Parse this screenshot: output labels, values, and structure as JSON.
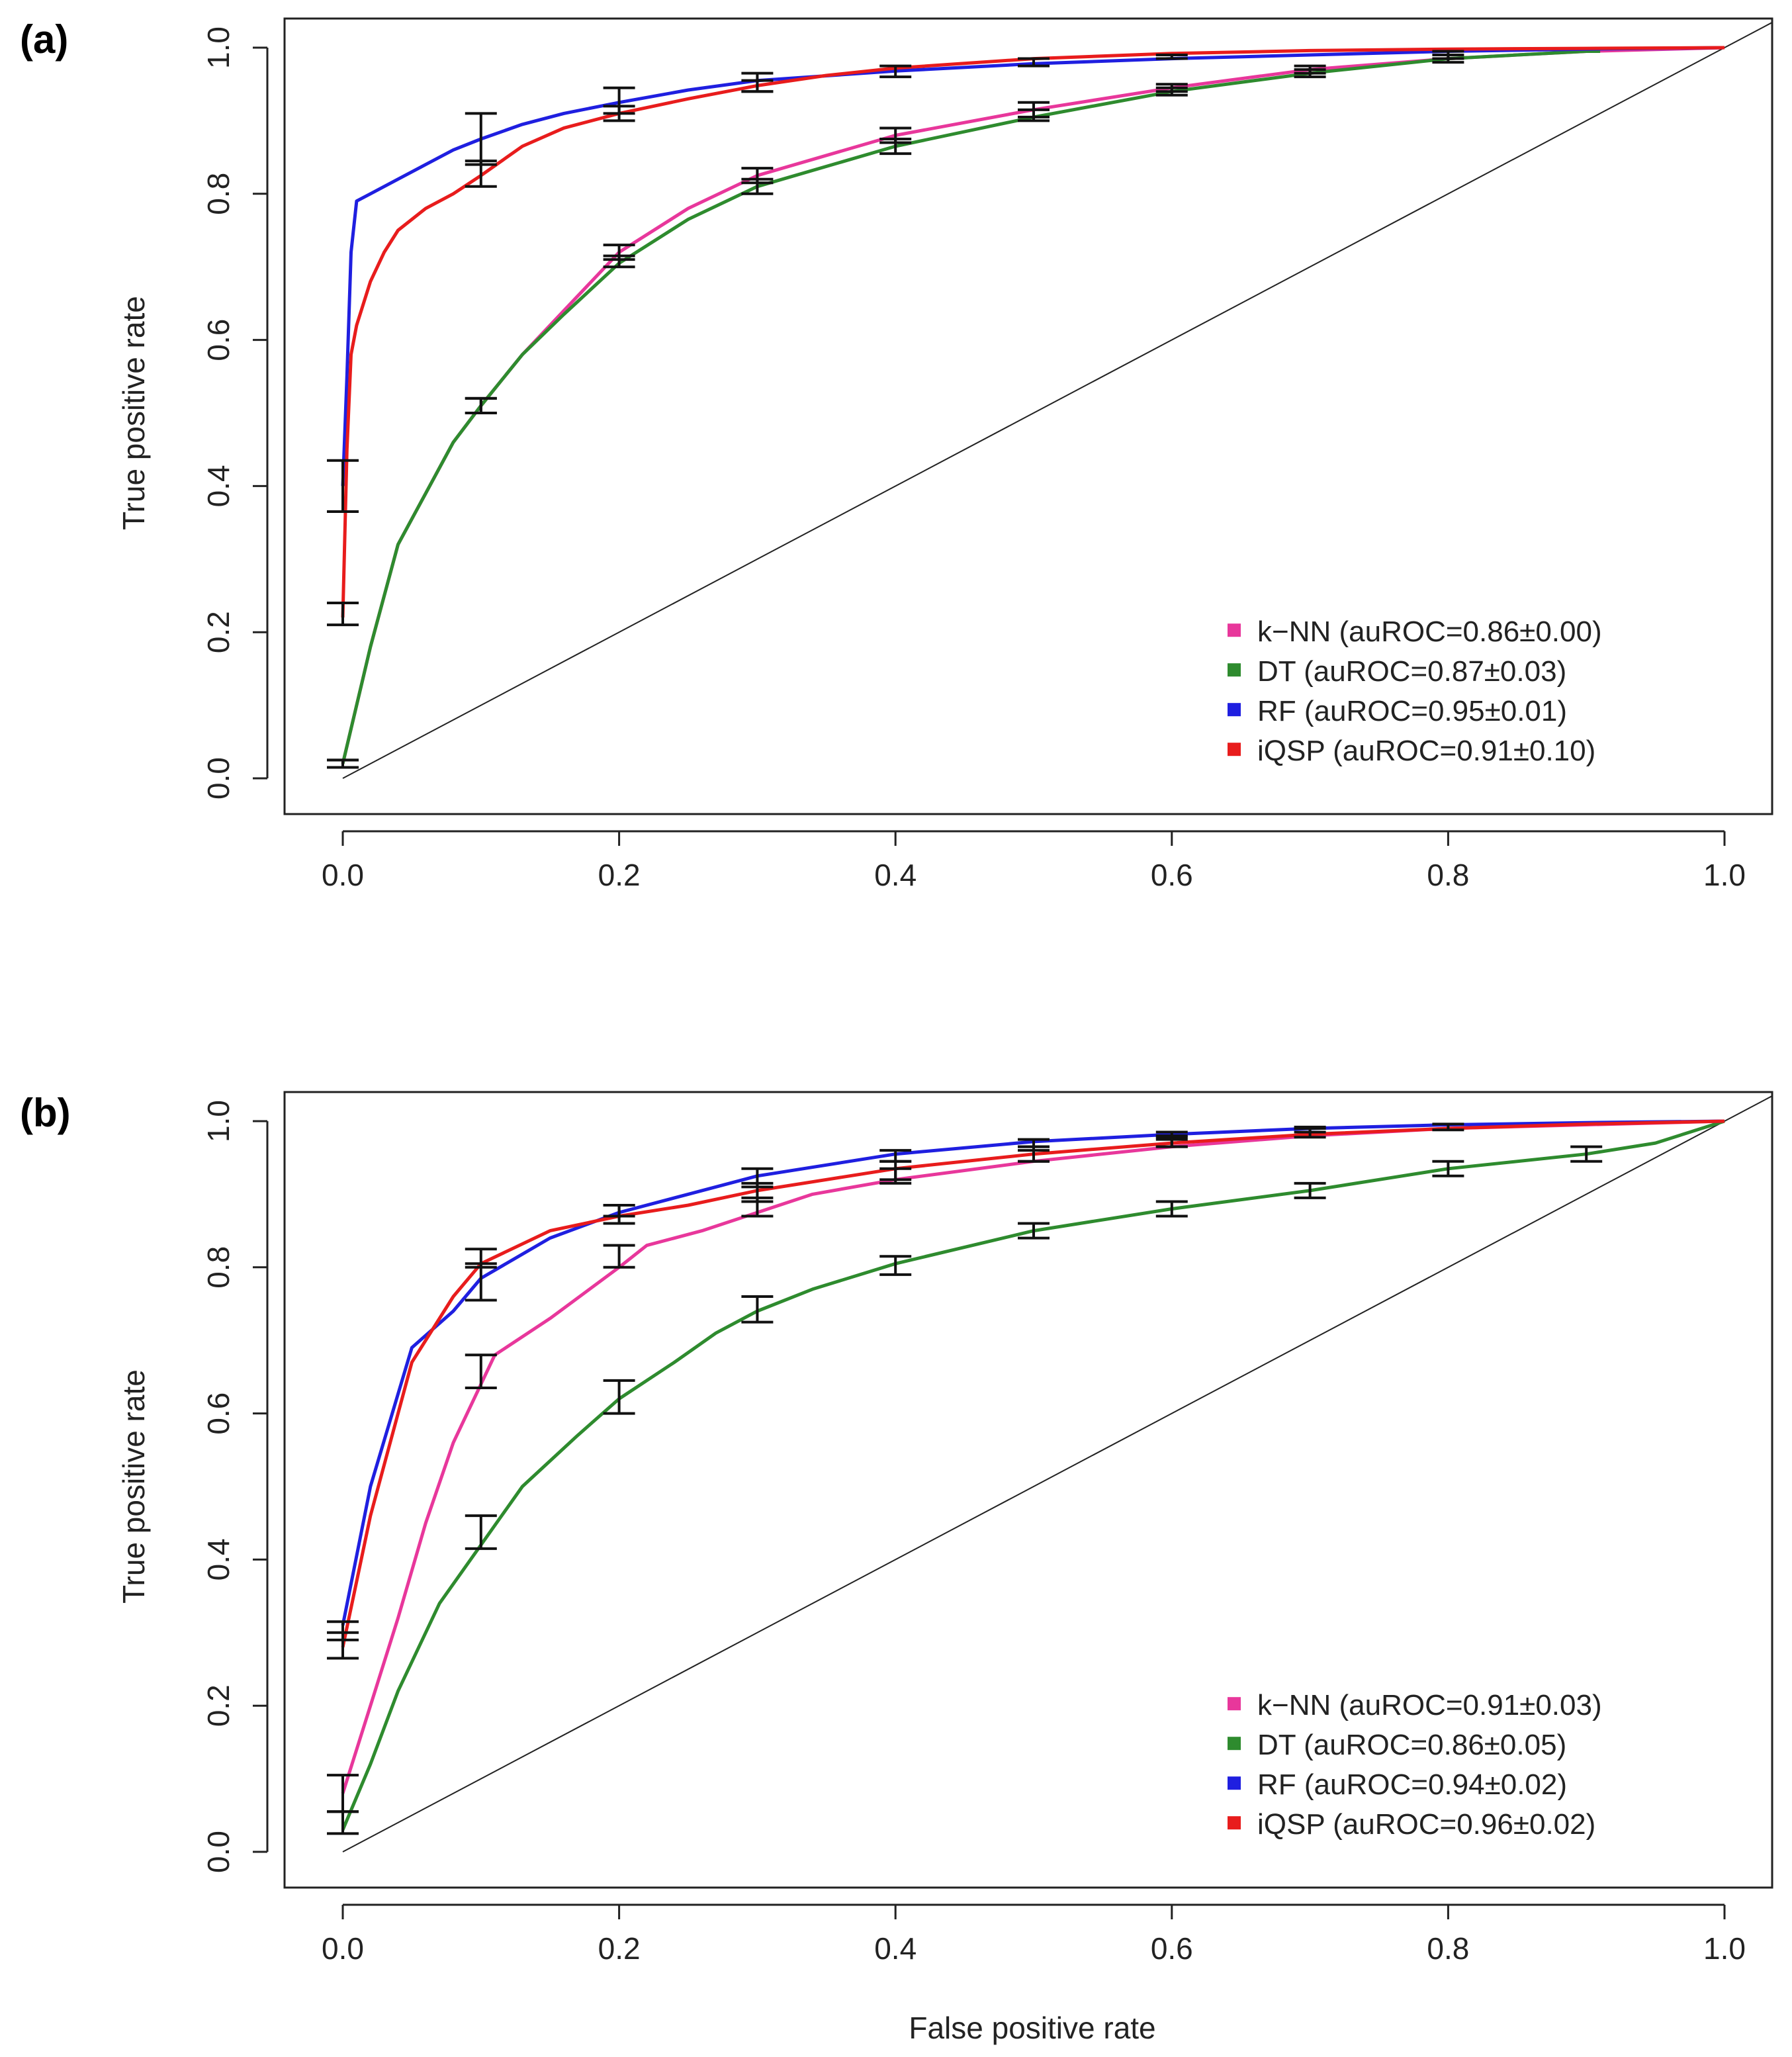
{
  "figure": {
    "x_axis_title": "False positive rate"
  },
  "chart_data": [
    {
      "panel_label": "(a)",
      "type": "line",
      "ylabel": "True positive rate",
      "xlabel": "",
      "xlim": [
        0,
        1
      ],
      "ylim": [
        0,
        1
      ],
      "xticks": [
        "0.0",
        "0.2",
        "0.4",
        "0.6",
        "0.8",
        "1.0"
      ],
      "yticks": [
        "0.0",
        "0.2",
        "0.4",
        "0.6",
        "0.8",
        "1.0"
      ],
      "legend_position": "bottom-right",
      "diagonal": true,
      "series": [
        {
          "name": "k-NN",
          "legend": "k−NN (auROC=0.86±0.00)",
          "color": "#e8379b",
          "x": [
            0,
            0.01,
            0.02,
            0.04,
            0.06,
            0.08,
            0.1,
            0.13,
            0.16,
            0.2,
            0.25,
            0.3,
            0.4,
            0.5,
            0.6,
            0.7,
            0.8,
            0.9,
            1.0
          ],
          "y": [
            0.02,
            0.1,
            0.18,
            0.32,
            0.39,
            0.46,
            0.51,
            0.58,
            0.64,
            0.72,
            0.78,
            0.825,
            0.88,
            0.915,
            0.945,
            0.97,
            0.985,
            0.995,
            1.0
          ],
          "errors": [
            {
              "x": 0,
              "lo": 0.015,
              "hi": 0.025
            },
            {
              "x": 0.1,
              "lo": 0.5,
              "hi": 0.52
            },
            {
              "x": 0.2,
              "lo": 0.71,
              "hi": 0.73
            },
            {
              "x": 0.3,
              "lo": 0.815,
              "hi": 0.835
            },
            {
              "x": 0.4,
              "lo": 0.87,
              "hi": 0.89
            },
            {
              "x": 0.5,
              "lo": 0.905,
              "hi": 0.925
            },
            {
              "x": 0.6,
              "lo": 0.94,
              "hi": 0.95
            },
            {
              "x": 0.7,
              "lo": 0.965,
              "hi": 0.975
            },
            {
              "x": 0.8,
              "lo": 0.985,
              "hi": 0.995
            }
          ]
        },
        {
          "name": "DT",
          "legend": "DT (auROC=0.87±0.03)",
          "color": "#2e8b2e",
          "x": [
            0,
            0.01,
            0.02,
            0.04,
            0.06,
            0.08,
            0.1,
            0.13,
            0.16,
            0.2,
            0.25,
            0.3,
            0.4,
            0.5,
            0.6,
            0.7,
            0.8,
            0.9,
            0.91
          ],
          "y": [
            0.02,
            0.1,
            0.18,
            0.32,
            0.39,
            0.46,
            0.51,
            0.58,
            0.635,
            0.705,
            0.765,
            0.81,
            0.865,
            0.905,
            0.94,
            0.965,
            0.985,
            0.995,
            0.995
          ],
          "errors": [
            {
              "x": 0,
              "lo": 0.015,
              "hi": 0.025
            },
            {
              "x": 0.1,
              "lo": 0.5,
              "hi": 0.52
            },
            {
              "x": 0.2,
              "lo": 0.7,
              "hi": 0.715
            },
            {
              "x": 0.3,
              "lo": 0.8,
              "hi": 0.82
            },
            {
              "x": 0.4,
              "lo": 0.855,
              "hi": 0.875
            },
            {
              "x": 0.5,
              "lo": 0.9,
              "hi": 0.915
            },
            {
              "x": 0.6,
              "lo": 0.935,
              "hi": 0.945
            },
            {
              "x": 0.7,
              "lo": 0.96,
              "hi": 0.97
            },
            {
              "x": 0.8,
              "lo": 0.98,
              "hi": 0.99
            }
          ]
        },
        {
          "name": "RF",
          "legend": "RF (auROC=0.95±0.01)",
          "color": "#1f1fe0",
          "x": [
            0,
            0.003,
            0.006,
            0.01,
            0.02,
            0.04,
            0.06,
            0.08,
            0.1,
            0.13,
            0.16,
            0.2,
            0.25,
            0.3,
            0.4,
            0.5,
            0.6,
            0.7,
            0.8,
            0.9,
            1.0
          ],
          "y": [
            0.4,
            0.55,
            0.72,
            0.79,
            0.8,
            0.82,
            0.84,
            0.86,
            0.875,
            0.895,
            0.91,
            0.925,
            0.942,
            0.955,
            0.968,
            0.978,
            0.985,
            0.99,
            0.995,
            0.998,
            1.0
          ],
          "errors": [
            {
              "x": 0,
              "lo": 0.365,
              "hi": 0.435
            },
            {
              "x": 0.1,
              "lo": 0.84,
              "hi": 0.91
            },
            {
              "x": 0.2,
              "lo": 0.91,
              "hi": 0.945
            },
            {
              "x": 0.3,
              "lo": 0.94,
              "hi": 0.965
            },
            {
              "x": 0.4,
              "lo": 0.96,
              "hi": 0.975
            },
            {
              "x": 0.5,
              "lo": 0.975,
              "hi": 0.985
            },
            {
              "x": 0.6,
              "lo": 0.985,
              "hi": 0.99
            }
          ]
        },
        {
          "name": "iQSP",
          "legend": "iQSP (auROC=0.91±0.10)",
          "color": "#e81c1c",
          "x": [
            0,
            0.003,
            0.006,
            0.01,
            0.02,
            0.03,
            0.04,
            0.06,
            0.08,
            0.1,
            0.13,
            0.16,
            0.2,
            0.25,
            0.3,
            0.35,
            0.4,
            0.5,
            0.6,
            0.7,
            0.8,
            0.9,
            1.0
          ],
          "y": [
            0.22,
            0.45,
            0.58,
            0.62,
            0.68,
            0.72,
            0.75,
            0.78,
            0.8,
            0.825,
            0.865,
            0.89,
            0.91,
            0.93,
            0.948,
            0.962,
            0.972,
            0.985,
            0.992,
            0.996,
            0.998,
            0.999,
            1.0
          ],
          "errors": [
            {
              "x": 0,
              "lo": 0.21,
              "hi": 0.24
            },
            {
              "x": 0.1,
              "lo": 0.81,
              "hi": 0.845
            },
            {
              "x": 0.2,
              "lo": 0.9,
              "hi": 0.92
            },
            {
              "x": 0.3,
              "lo": 0.94,
              "hi": 0.955
            }
          ]
        }
      ]
    },
    {
      "panel_label": "(b)",
      "type": "line",
      "ylabel": "True positive rate",
      "xlabel": "False positive rate",
      "xlim": [
        0,
        1
      ],
      "ylim": [
        0,
        1
      ],
      "xticks": [
        "0.0",
        "0.2",
        "0.4",
        "0.6",
        "0.8",
        "1.0"
      ],
      "yticks": [
        "0.0",
        "0.2",
        "0.4",
        "0.6",
        "0.8",
        "1.0"
      ],
      "legend_position": "bottom-right",
      "diagonal": true,
      "series": [
        {
          "name": "k-NN",
          "legend": "k−NN (auROC=0.91±0.03)",
          "color": "#e8379b",
          "x": [
            0,
            0.02,
            0.04,
            0.06,
            0.08,
            0.11,
            0.15,
            0.2,
            0.22,
            0.26,
            0.3,
            0.34,
            0.4,
            0.5,
            0.6,
            0.7,
            0.8,
            0.9,
            1.0
          ],
          "y": [
            0.08,
            0.2,
            0.32,
            0.45,
            0.56,
            0.68,
            0.73,
            0.8,
            0.83,
            0.85,
            0.875,
            0.9,
            0.92,
            0.945,
            0.965,
            0.98,
            0.99,
            0.995,
            1.0
          ],
          "errors": [
            {
              "x": 0,
              "lo": 0.055,
              "hi": 0.105
            },
            {
              "x": 0.1,
              "lo": 0.635,
              "hi": 0.68
            },
            {
              "x": 0.2,
              "lo": 0.8,
              "hi": 0.83
            },
            {
              "x": 0.3,
              "lo": 0.87,
              "hi": 0.895
            },
            {
              "x": 0.4,
              "lo": 0.915,
              "hi": 0.935
            },
            {
              "x": 0.5,
              "lo": 0.945,
              "hi": 0.96
            },
            {
              "x": 0.6,
              "lo": 0.965,
              "hi": 0.975
            }
          ]
        },
        {
          "name": "DT",
          "legend": "DT (auROC=0.86±0.05)",
          "color": "#2e8b2e",
          "x": [
            0,
            0.02,
            0.04,
            0.07,
            0.1,
            0.13,
            0.17,
            0.2,
            0.24,
            0.27,
            0.3,
            0.34,
            0.4,
            0.5,
            0.6,
            0.7,
            0.8,
            0.9,
            0.95,
            1.0
          ],
          "y": [
            0.03,
            0.12,
            0.22,
            0.34,
            0.42,
            0.5,
            0.57,
            0.62,
            0.67,
            0.71,
            0.74,
            0.77,
            0.805,
            0.85,
            0.88,
            0.905,
            0.935,
            0.955,
            0.97,
            1.0
          ],
          "errors": [
            {
              "x": 0,
              "lo": 0.025,
              "hi": 0.055
            },
            {
              "x": 0.1,
              "lo": 0.415,
              "hi": 0.46
            },
            {
              "x": 0.2,
              "lo": 0.6,
              "hi": 0.645
            },
            {
              "x": 0.3,
              "lo": 0.725,
              "hi": 0.76
            },
            {
              "x": 0.4,
              "lo": 0.79,
              "hi": 0.815
            },
            {
              "x": 0.5,
              "lo": 0.84,
              "hi": 0.86
            },
            {
              "x": 0.6,
              "lo": 0.87,
              "hi": 0.89
            },
            {
              "x": 0.7,
              "lo": 0.895,
              "hi": 0.915
            },
            {
              "x": 0.8,
              "lo": 0.925,
              "hi": 0.945
            },
            {
              "x": 0.9,
              "lo": 0.945,
              "hi": 0.965
            }
          ]
        },
        {
          "name": "RF",
          "legend": "RF (auROC=0.94±0.02)",
          "color": "#1f1fe0",
          "x": [
            0,
            0.02,
            0.05,
            0.08,
            0.1,
            0.15,
            0.2,
            0.25,
            0.3,
            0.4,
            0.5,
            0.6,
            0.7,
            0.8,
            0.9,
            1.0
          ],
          "y": [
            0.31,
            0.5,
            0.69,
            0.74,
            0.785,
            0.84,
            0.875,
            0.9,
            0.925,
            0.955,
            0.972,
            0.982,
            0.99,
            0.995,
            0.998,
            1.0
          ],
          "errors": [
            {
              "x": 0,
              "lo": 0.29,
              "hi": 0.315
            },
            {
              "x": 0.1,
              "lo": 0.755,
              "hi": 0.805
            },
            {
              "x": 0.2,
              "lo": 0.87,
              "hi": 0.885
            },
            {
              "x": 0.3,
              "lo": 0.91,
              "hi": 0.935
            },
            {
              "x": 0.4,
              "lo": 0.945,
              "hi": 0.96
            },
            {
              "x": 0.5,
              "lo": 0.965,
              "hi": 0.975
            },
            {
              "x": 0.6,
              "lo": 0.978,
              "hi": 0.985
            },
            {
              "x": 0.7,
              "lo": 0.985,
              "hi": 0.992
            }
          ]
        },
        {
          "name": "iQSP",
          "legend": "iQSP (auROC=0.96±0.02)",
          "color": "#e81c1c",
          "x": [
            0,
            0.02,
            0.05,
            0.08,
            0.1,
            0.15,
            0.2,
            0.25,
            0.3,
            0.4,
            0.5,
            0.6,
            0.7,
            0.8,
            0.9,
            1.0
          ],
          "y": [
            0.28,
            0.46,
            0.67,
            0.76,
            0.805,
            0.85,
            0.87,
            0.885,
            0.905,
            0.935,
            0.955,
            0.97,
            0.982,
            0.99,
            0.996,
            1.0
          ],
          "errors": [
            {
              "x": 0,
              "lo": 0.265,
              "hi": 0.3
            },
            {
              "x": 0.1,
              "lo": 0.8,
              "hi": 0.825
            },
            {
              "x": 0.2,
              "lo": 0.86,
              "hi": 0.885
            },
            {
              "x": 0.3,
              "lo": 0.89,
              "hi": 0.915
            },
            {
              "x": 0.4,
              "lo": 0.92,
              "hi": 0.945
            },
            {
              "x": 0.5,
              "lo": 0.945,
              "hi": 0.965
            },
            {
              "x": 0.6,
              "lo": 0.965,
              "hi": 0.98
            },
            {
              "x": 0.7,
              "lo": 0.978,
              "hi": 0.99
            },
            {
              "x": 0.8,
              "lo": 0.988,
              "hi": 0.996
            }
          ]
        }
      ]
    }
  ]
}
